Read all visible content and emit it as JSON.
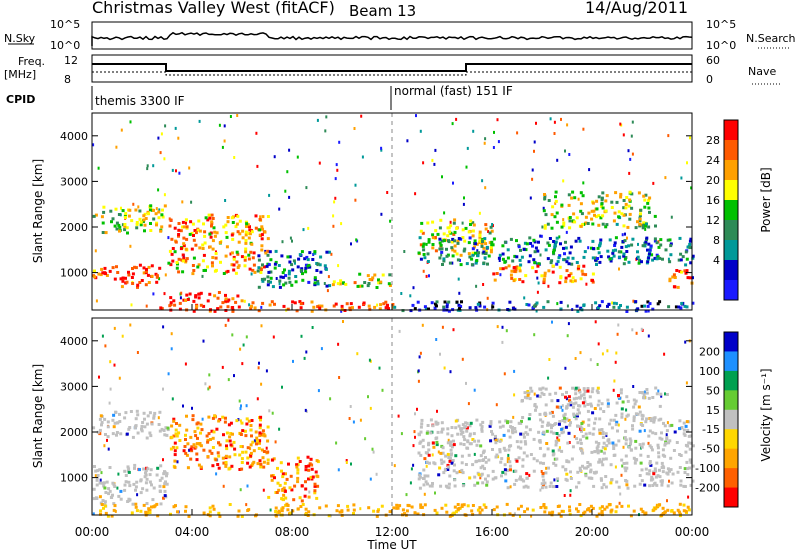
{
  "header": {
    "title": "Christmas Valley West (fitACF)",
    "beam": "Beam 13",
    "date": "14/Aug/2011"
  },
  "strip": {
    "nsky_label": "N.Sky",
    "nsky_ticks": [
      "10^5",
      "10^0"
    ],
    "nsearch_label": "N.Search",
    "nsearch_ticks": [
      "10^5",
      "10^0"
    ],
    "freq_label": "Freq.",
    "freq_unit": "[MHz]",
    "freq_ticks": [
      "12",
      "8"
    ],
    "nave_label": "Nave",
    "nave_ticks": [
      "60",
      "0"
    ],
    "cpid_label": "CPID",
    "cpid_segments": [
      {
        "name": "themis 3300 IF",
        "start_hour": 0
      },
      {
        "name": "normal (fast) 151 IF",
        "start_hour": 12
      }
    ]
  },
  "chart_data": [
    {
      "type": "heatmap",
      "name": "power",
      "x_hours": [
        0,
        24
      ],
      "xticks": [
        "00:00",
        "04:00",
        "08:00",
        "12:00",
        "16:00",
        "20:00",
        "00:00"
      ],
      "ylabel": "Slant Range [km]",
      "ylim": [
        180,
        4500
      ],
      "yticks": [
        1000,
        2000,
        3000,
        4000
      ],
      "colorbar": {
        "label": "Power [dB]",
        "ticks": [
          "28",
          "24",
          "20",
          "16",
          "12",
          "8",
          "4"
        ],
        "colors": [
          "#ff0000",
          "#ff5a00",
          "#ffa000",
          "#ffff00",
          "#00c000",
          "#2e8b57",
          "#009999",
          "#0000c8",
          "#1a1aff"
        ]
      },
      "regions": [
        {
          "t0": 0.0,
          "t1": 2.8,
          "r0": 700,
          "r1": 1200,
          "level": 0.85
        },
        {
          "t0": 0.0,
          "t1": 3.0,
          "r0": 1900,
          "r1": 2500,
          "level": 0.55
        },
        {
          "t0": 3.0,
          "t1": 7.0,
          "r0": 1000,
          "r1": 2300,
          "level": 0.75
        },
        {
          "t0": 6.5,
          "t1": 9.5,
          "r0": 700,
          "r1": 1500,
          "level": 0.3
        },
        {
          "t0": 9.5,
          "t1": 12.0,
          "r0": 700,
          "r1": 1000,
          "level": 0.6
        },
        {
          "t0": 2.5,
          "t1": 6.0,
          "r0": 180,
          "r1": 600,
          "level": 0.95
        },
        {
          "t0": 6.0,
          "t1": 12.0,
          "r0": 180,
          "r1": 400,
          "level": 0.9
        },
        {
          "t0": 12.0,
          "t1": 24.0,
          "r0": 180,
          "r1": 400,
          "level": 0.15
        },
        {
          "t0": 13.0,
          "t1": 16.0,
          "r0": 1400,
          "r1": 2200,
          "level": 0.6
        },
        {
          "t0": 13.0,
          "t1": 24.0,
          "r0": 1200,
          "r1": 1800,
          "level": 0.3
        },
        {
          "t0": 16.0,
          "t1": 20.0,
          "r0": 800,
          "r1": 1200,
          "level": 0.8
        },
        {
          "t0": 18.0,
          "t1": 22.5,
          "r0": 2000,
          "r1": 2800,
          "level": 0.55
        },
        {
          "t0": 23.0,
          "t1": 24.0,
          "r0": 700,
          "r1": 1100,
          "level": 0.85
        }
      ]
    },
    {
      "type": "heatmap",
      "name": "velocity",
      "x_hours": [
        0,
        24
      ],
      "xticks": [
        "00:00",
        "04:00",
        "08:00",
        "12:00",
        "16:00",
        "20:00",
        "00:00"
      ],
      "xlabel": "Time UT",
      "ylabel": "Slant Range [km]",
      "ylim": [
        180,
        4500
      ],
      "yticks": [
        1000,
        2000,
        3000,
        4000
      ],
      "colorbar": {
        "label": "Velocity [m s⁻¹]",
        "ticks": [
          "200",
          "100",
          "50",
          "15",
          "-15",
          "-50",
          "-100",
          "-200"
        ],
        "colors": [
          "#0000c8",
          "#1e90ff",
          "#00a050",
          "#66cc33",
          "#c0c0c0",
          "#ffd700",
          "#ffa500",
          "#ff6000",
          "#ff0000"
        ]
      },
      "regions": [
        {
          "t0": 0.0,
          "t1": 3.0,
          "r0": 400,
          "r1": 1300,
          "kind": "ground"
        },
        {
          "t0": 0.0,
          "t1": 3.0,
          "r0": 1900,
          "r1": 2500,
          "kind": "ground"
        },
        {
          "t0": 3.0,
          "t1": 7.0,
          "r0": 1200,
          "r1": 2400,
          "kind": "neg"
        },
        {
          "t0": 7.0,
          "t1": 9.0,
          "r0": 500,
          "r1": 1500,
          "kind": "neg"
        },
        {
          "t0": 0.0,
          "t1": 24.0,
          "r0": 180,
          "r1": 450,
          "kind": "neg_low"
        },
        {
          "t0": 13.0,
          "t1": 24.0,
          "r0": 800,
          "r1": 2300,
          "kind": "ground"
        },
        {
          "t0": 17.0,
          "t1": 23.0,
          "r0": 2300,
          "r1": 3000,
          "kind": "ground"
        }
      ]
    }
  ]
}
